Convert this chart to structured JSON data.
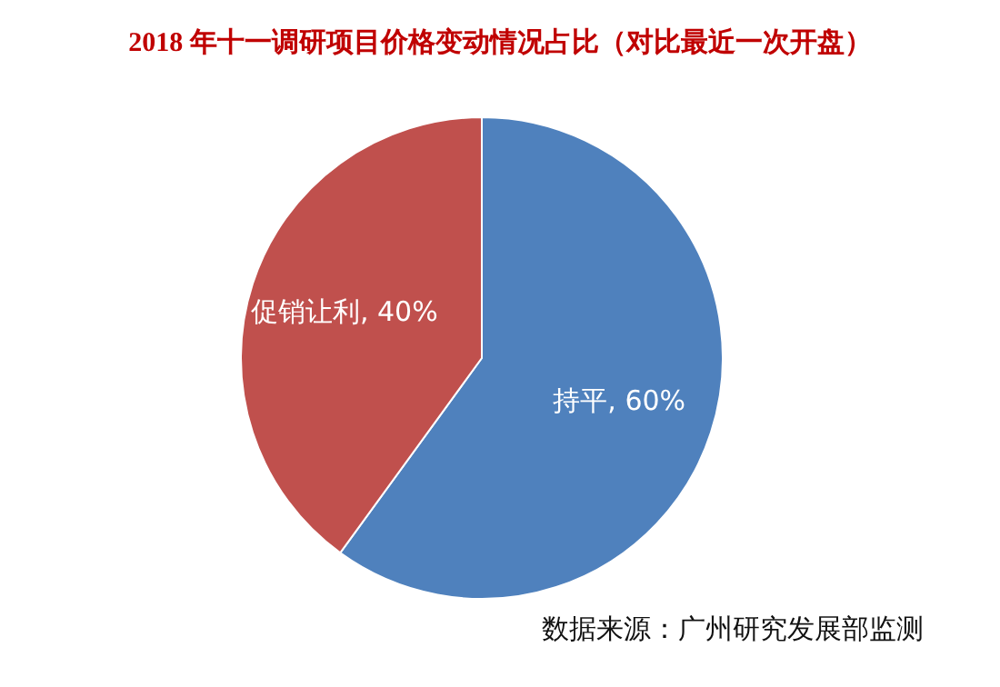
{
  "chart_data": {
    "type": "pie",
    "title": "2018 年十一调研项目价格变动情况占比（对比最近一次开盘）",
    "categories": [
      "持平",
      "促销让利"
    ],
    "values": [
      60,
      40
    ],
    "colors": [
      "#4f81bd",
      "#c0504d"
    ],
    "value_labels": [
      "60%",
      "40%"
    ],
    "legend": false,
    "annotations": [
      "数据来源：广州研究发展部监测"
    ]
  }
}
